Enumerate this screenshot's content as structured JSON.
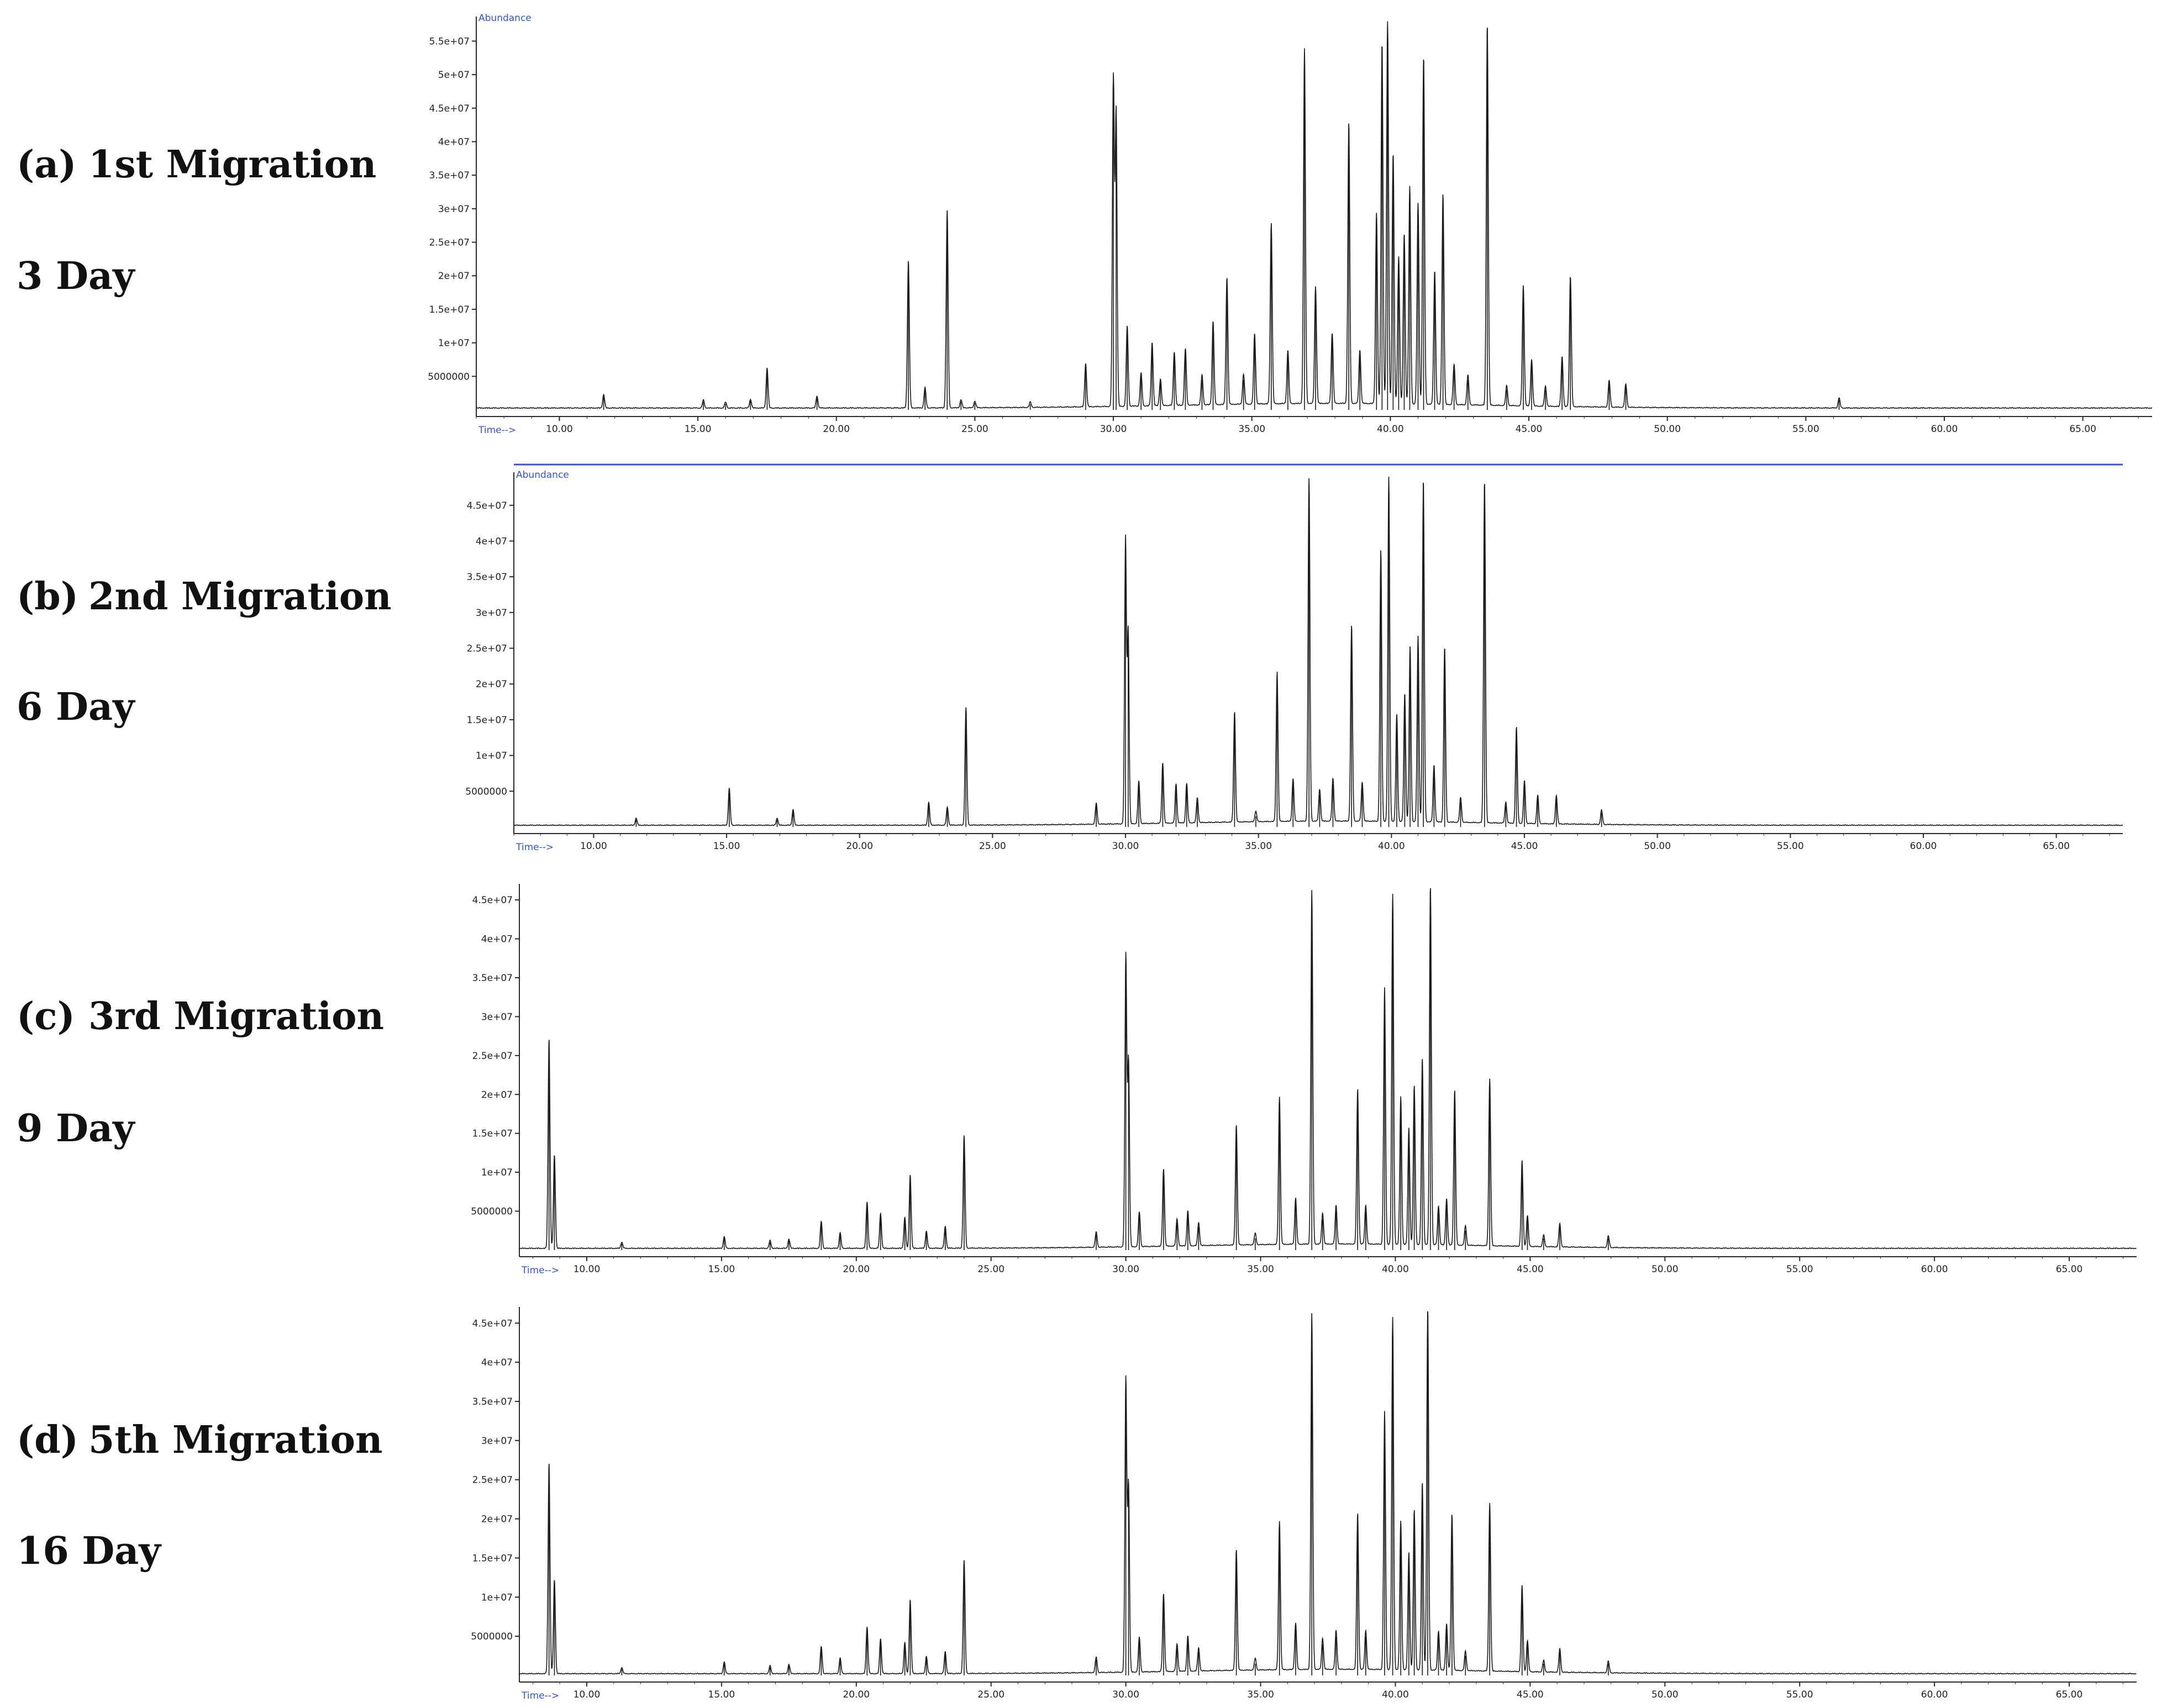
{
  "panels": [
    {
      "letter": "(a)",
      "name": "1st Migration",
      "day": "3 Day"
    },
    {
      "letter": "(b)",
      "name": "2nd Migration",
      "day": "6 Day"
    },
    {
      "letter": "(c)",
      "name": "3rd Migration",
      "day": "9 Day"
    },
    {
      "letter": "(d)",
      "name": "5th Migration",
      "day": "16 Day"
    }
  ],
  "colors": {
    "trace": "#1a1a1a",
    "axis": "#2a2a2a",
    "header": "#3355cc"
  },
  "chart_data": [
    {
      "type": "line",
      "ylabel": "Abundance",
      "xlabel": "Time-->",
      "xlim": [
        7.0,
        67.5
      ],
      "ylim": [
        0,
        58000000
      ],
      "xticks": [
        10,
        15,
        20,
        25,
        30,
        35,
        40,
        45,
        50,
        55,
        60,
        65
      ],
      "xtick_labels": [
        "10.00",
        "15.00",
        "20.00",
        "25.00",
        "30.00",
        "35.00",
        "40.00",
        "45.00",
        "50.00",
        "55.00",
        "60.00",
        "65.00"
      ],
      "yticks": [
        5000000,
        10000000,
        15000000,
        20000000,
        25000000,
        30000000,
        35000000,
        40000000,
        45000000,
        50000000,
        55000000
      ],
      "ytick_labels": [
        "5000000",
        "1e+07",
        "1.5e+07",
        "2e+07",
        "2.5e+07",
        "3e+07",
        "3.5e+07",
        "4e+07",
        "4.5e+07",
        "5e+07",
        "5.5e+07"
      ],
      "peaks": [
        [
          11.6,
          2000000
        ],
        [
          15.2,
          1200000
        ],
        [
          16.0,
          900000
        ],
        [
          16.9,
          1300000
        ],
        [
          17.5,
          6000000
        ],
        [
          19.3,
          1800000
        ],
        [
          22.6,
          22000000
        ],
        [
          23.2,
          3000000
        ],
        [
          24.0,
          29500000
        ],
        [
          24.5,
          1200000
        ],
        [
          25.0,
          1000000
        ],
        [
          27.0,
          800000
        ],
        [
          29.0,
          6500000
        ],
        [
          30.0,
          49000000
        ],
        [
          30.1,
          44000000
        ],
        [
          30.5,
          12000000
        ],
        [
          31.0,
          5000000
        ],
        [
          31.4,
          9500000
        ],
        [
          31.7,
          4000000
        ],
        [
          32.2,
          8000000
        ],
        [
          32.6,
          8500000
        ],
        [
          33.2,
          4500000
        ],
        [
          33.6,
          12500000
        ],
        [
          34.1,
          19000000
        ],
        [
          34.7,
          4500000
        ],
        [
          35.1,
          10500000
        ],
        [
          35.7,
          27000000
        ],
        [
          36.3,
          8000000
        ],
        [
          36.9,
          53000000
        ],
        [
          37.3,
          17500000
        ],
        [
          37.9,
          10500000
        ],
        [
          38.5,
          42000000
        ],
        [
          38.9,
          8000000
        ],
        [
          39.5,
          28500000
        ],
        [
          39.7,
          54000000
        ],
        [
          39.9,
          57000000
        ],
        [
          40.1,
          37500000
        ],
        [
          40.3,
          22000000
        ],
        [
          40.5,
          25500000
        ],
        [
          40.7,
          32500000
        ],
        [
          41.0,
          30000000
        ],
        [
          41.2,
          52000000
        ],
        [
          41.6,
          20000000
        ],
        [
          41.9,
          31500000
        ],
        [
          42.3,
          6000000
        ],
        [
          42.8,
          4500000
        ],
        [
          43.5,
          57000000
        ],
        [
          44.2,
          3000000
        ],
        [
          44.8,
          18000000
        ],
        [
          45.1,
          7000000
        ],
        [
          45.6,
          3000000
        ],
        [
          46.2,
          7500000
        ],
        [
          46.5,
          19500000
        ],
        [
          47.9,
          4000000
        ],
        [
          48.5,
          3500000
        ],
        [
          56.2,
          1500000
        ]
      ]
    },
    {
      "type": "line",
      "ylabel": "Abundance",
      "xlabel": "Time-->",
      "xlim": [
        7.0,
        67.5
      ],
      "ylim": [
        0,
        49000000
      ],
      "xticks": [
        10,
        15,
        20,
        25,
        30,
        35,
        40,
        45,
        50,
        55,
        60,
        65
      ],
      "xtick_labels": [
        "10.00",
        "15.00",
        "20.00",
        "25.00",
        "30.00",
        "35.00",
        "40.00",
        "45.00",
        "50.00",
        "55.00",
        "60.00",
        "65.00"
      ],
      "yticks": [
        5000000,
        10000000,
        15000000,
        20000000,
        25000000,
        30000000,
        35000000,
        40000000,
        45000000
      ],
      "ytick_labels": [
        "5000000",
        "1e+07",
        "1.5e+07",
        "2e+07",
        "2.5e+07",
        "3e+07",
        "3.5e+07",
        "4e+07",
        "4.5e+07"
      ],
      "peaks": [
        [
          11.6,
          1000000
        ],
        [
          15.1,
          5200000
        ],
        [
          16.9,
          1000000
        ],
        [
          17.5,
          2200000
        ],
        [
          22.6,
          3200000
        ],
        [
          23.3,
          2500000
        ],
        [
          24.0,
          16500000
        ],
        [
          28.9,
          3000000
        ],
        [
          30.0,
          40000000
        ],
        [
          30.1,
          27000000
        ],
        [
          30.5,
          6000000
        ],
        [
          31.4,
          8500000
        ],
        [
          31.9,
          5500000
        ],
        [
          32.3,
          5500000
        ],
        [
          32.7,
          3500000
        ],
        [
          34.1,
          15500000
        ],
        [
          34.9,
          1500000
        ],
        [
          35.7,
          21000000
        ],
        [
          36.3,
          6000000
        ],
        [
          36.9,
          48000000
        ],
        [
          37.3,
          4500000
        ],
        [
          37.8,
          6000000
        ],
        [
          38.5,
          27500000
        ],
        [
          38.9,
          5500000
        ],
        [
          39.6,
          38000000
        ],
        [
          39.9,
          48500000
        ],
        [
          40.2,
          15000000
        ],
        [
          40.5,
          18000000
        ],
        [
          40.7,
          24500000
        ],
        [
          41.0,
          26000000
        ],
        [
          41.2,
          48000000
        ],
        [
          41.6,
          8000000
        ],
        [
          42.0,
          24500000
        ],
        [
          42.6,
          3500000
        ],
        [
          43.5,
          48000000
        ],
        [
          44.3,
          3000000
        ],
        [
          44.7,
          13500000
        ],
        [
          45.0,
          6000000
        ],
        [
          45.5,
          4000000
        ],
        [
          46.2,
          4000000
        ],
        [
          47.9,
          2000000
        ]
      ]
    },
    {
      "type": "line",
      "ylabel": "",
      "xlabel": "Time-->",
      "xlim": [
        7.5,
        67.5
      ],
      "ylim": [
        0,
        46500000
      ],
      "xticks": [
        10,
        15,
        20,
        25,
        30,
        35,
        40,
        45,
        50,
        55,
        60,
        65
      ],
      "xtick_labels": [
        "10.00",
        "15.00",
        "20.00",
        "25.00",
        "30.00",
        "35.00",
        "40.00",
        "45.00",
        "50.00",
        "55.00",
        "60.00",
        "65.00"
      ],
      "yticks": [
        5000000,
        10000000,
        15000000,
        20000000,
        25000000,
        30000000,
        35000000,
        40000000,
        45000000
      ],
      "ytick_labels": [
        "5000000",
        "1e+07",
        "1.5e+07",
        "2e+07",
        "2.5e+07",
        "3e+07",
        "3.5e+07",
        "4e+07",
        "4.5e+07"
      ],
      "peaks": [
        [
          8.6,
          27000000
        ],
        [
          8.8,
          12000000
        ],
        [
          11.3,
          800000
        ],
        [
          15.1,
          1500000
        ],
        [
          16.8,
          1000000
        ],
        [
          17.5,
          1200000
        ],
        [
          18.7,
          3500000
        ],
        [
          19.4,
          2000000
        ],
        [
          20.4,
          6000000
        ],
        [
          20.9,
          4500000
        ],
        [
          21.8,
          4000000
        ],
        [
          22.0,
          9500000
        ],
        [
          22.6,
          2200000
        ],
        [
          23.3,
          2800000
        ],
        [
          24.0,
          14500000
        ],
        [
          28.9,
          2000000
        ],
        [
          30.0,
          37500000
        ],
        [
          30.1,
          24000000
        ],
        [
          30.5,
          4500000
        ],
        [
          31.4,
          10000000
        ],
        [
          31.9,
          3500000
        ],
        [
          32.3,
          4500000
        ],
        [
          32.7,
          3000000
        ],
        [
          34.1,
          15500000
        ],
        [
          34.8,
          1500000
        ],
        [
          35.7,
          19000000
        ],
        [
          36.3,
          6000000
        ],
        [
          36.9,
          45500000
        ],
        [
          37.3,
          4000000
        ],
        [
          37.8,
          5000000
        ],
        [
          38.6,
          20000000
        ],
        [
          38.9,
          5000000
        ],
        [
          39.6,
          33000000
        ],
        [
          39.9,
          45000000
        ],
        [
          40.2,
          19000000
        ],
        [
          40.5,
          15000000
        ],
        [
          40.7,
          20500000
        ],
        [
          41.0,
          24000000
        ],
        [
          41.3,
          46500000
        ],
        [
          41.6,
          5000000
        ],
        [
          41.9,
          6000000
        ],
        [
          42.2,
          20000000
        ],
        [
          42.6,
          2500000
        ],
        [
          43.5,
          21500000
        ],
        [
          44.7,
          11000000
        ],
        [
          44.9,
          4000000
        ],
        [
          45.5,
          1500000
        ],
        [
          46.1,
          3000000
        ],
        [
          47.9,
          1500000
        ]
      ]
    },
    {
      "type": "line",
      "ylabel": "",
      "xlabel": "Time-->",
      "xlim": [
        7.5,
        67.5
      ],
      "ylim": [
        0,
        46500000
      ],
      "xticks": [
        10,
        15,
        20,
        25,
        30,
        35,
        40,
        45,
        50,
        55,
        60,
        65
      ],
      "xtick_labels": [
        "10.00",
        "15.00",
        "20.00",
        "25.00",
        "30.00",
        "35.00",
        "40.00",
        "45.00",
        "50.00",
        "55.00",
        "60.00",
        "65.00"
      ],
      "yticks": [
        5000000,
        10000000,
        15000000,
        20000000,
        25000000,
        30000000,
        35000000,
        40000000,
        45000000
      ],
      "ytick_labels": [
        "5000000",
        "1e+07",
        "1.5e+07",
        "2e+07",
        "2.5e+07",
        "3e+07",
        "3.5e+07",
        "4e+07",
        "4.5e+07"
      ],
      "peaks": [
        [
          8.6,
          27000000
        ],
        [
          8.8,
          12000000
        ],
        [
          11.3,
          800000
        ],
        [
          15.1,
          1500000
        ],
        [
          16.8,
          1000000
        ],
        [
          17.5,
          1200000
        ],
        [
          18.7,
          3500000
        ],
        [
          19.4,
          2000000
        ],
        [
          20.4,
          6000000
        ],
        [
          20.9,
          4500000
        ],
        [
          21.8,
          4000000
        ],
        [
          22.0,
          9500000
        ],
        [
          22.6,
          2200000
        ],
        [
          23.3,
          2800000
        ],
        [
          24.0,
          14500000
        ],
        [
          28.9,
          2000000
        ],
        [
          30.0,
          37500000
        ],
        [
          30.1,
          24000000
        ],
        [
          30.5,
          4500000
        ],
        [
          31.4,
          10000000
        ],
        [
          31.9,
          3500000
        ],
        [
          32.3,
          4500000
        ],
        [
          32.7,
          3000000
        ],
        [
          34.1,
          15500000
        ],
        [
          34.8,
          1500000
        ],
        [
          35.7,
          19000000
        ],
        [
          36.3,
          6000000
        ],
        [
          36.9,
          45500000
        ],
        [
          37.3,
          4000000
        ],
        [
          37.8,
          5000000
        ],
        [
          38.6,
          20000000
        ],
        [
          38.9,
          5000000
        ],
        [
          39.6,
          33000000
        ],
        [
          39.9,
          45000000
        ],
        [
          40.2,
          19000000
        ],
        [
          40.5,
          15000000
        ],
        [
          40.7,
          20500000
        ],
        [
          41.0,
          24000000
        ],
        [
          41.2,
          46500000
        ],
        [
          41.6,
          5000000
        ],
        [
          41.9,
          6000000
        ],
        [
          42.1,
          20000000
        ],
        [
          42.6,
          2500000
        ],
        [
          43.5,
          21500000
        ],
        [
          44.7,
          11000000
        ],
        [
          44.9,
          4000000
        ],
        [
          45.5,
          1500000
        ],
        [
          46.1,
          3000000
        ],
        [
          47.9,
          1500000
        ]
      ]
    }
  ]
}
